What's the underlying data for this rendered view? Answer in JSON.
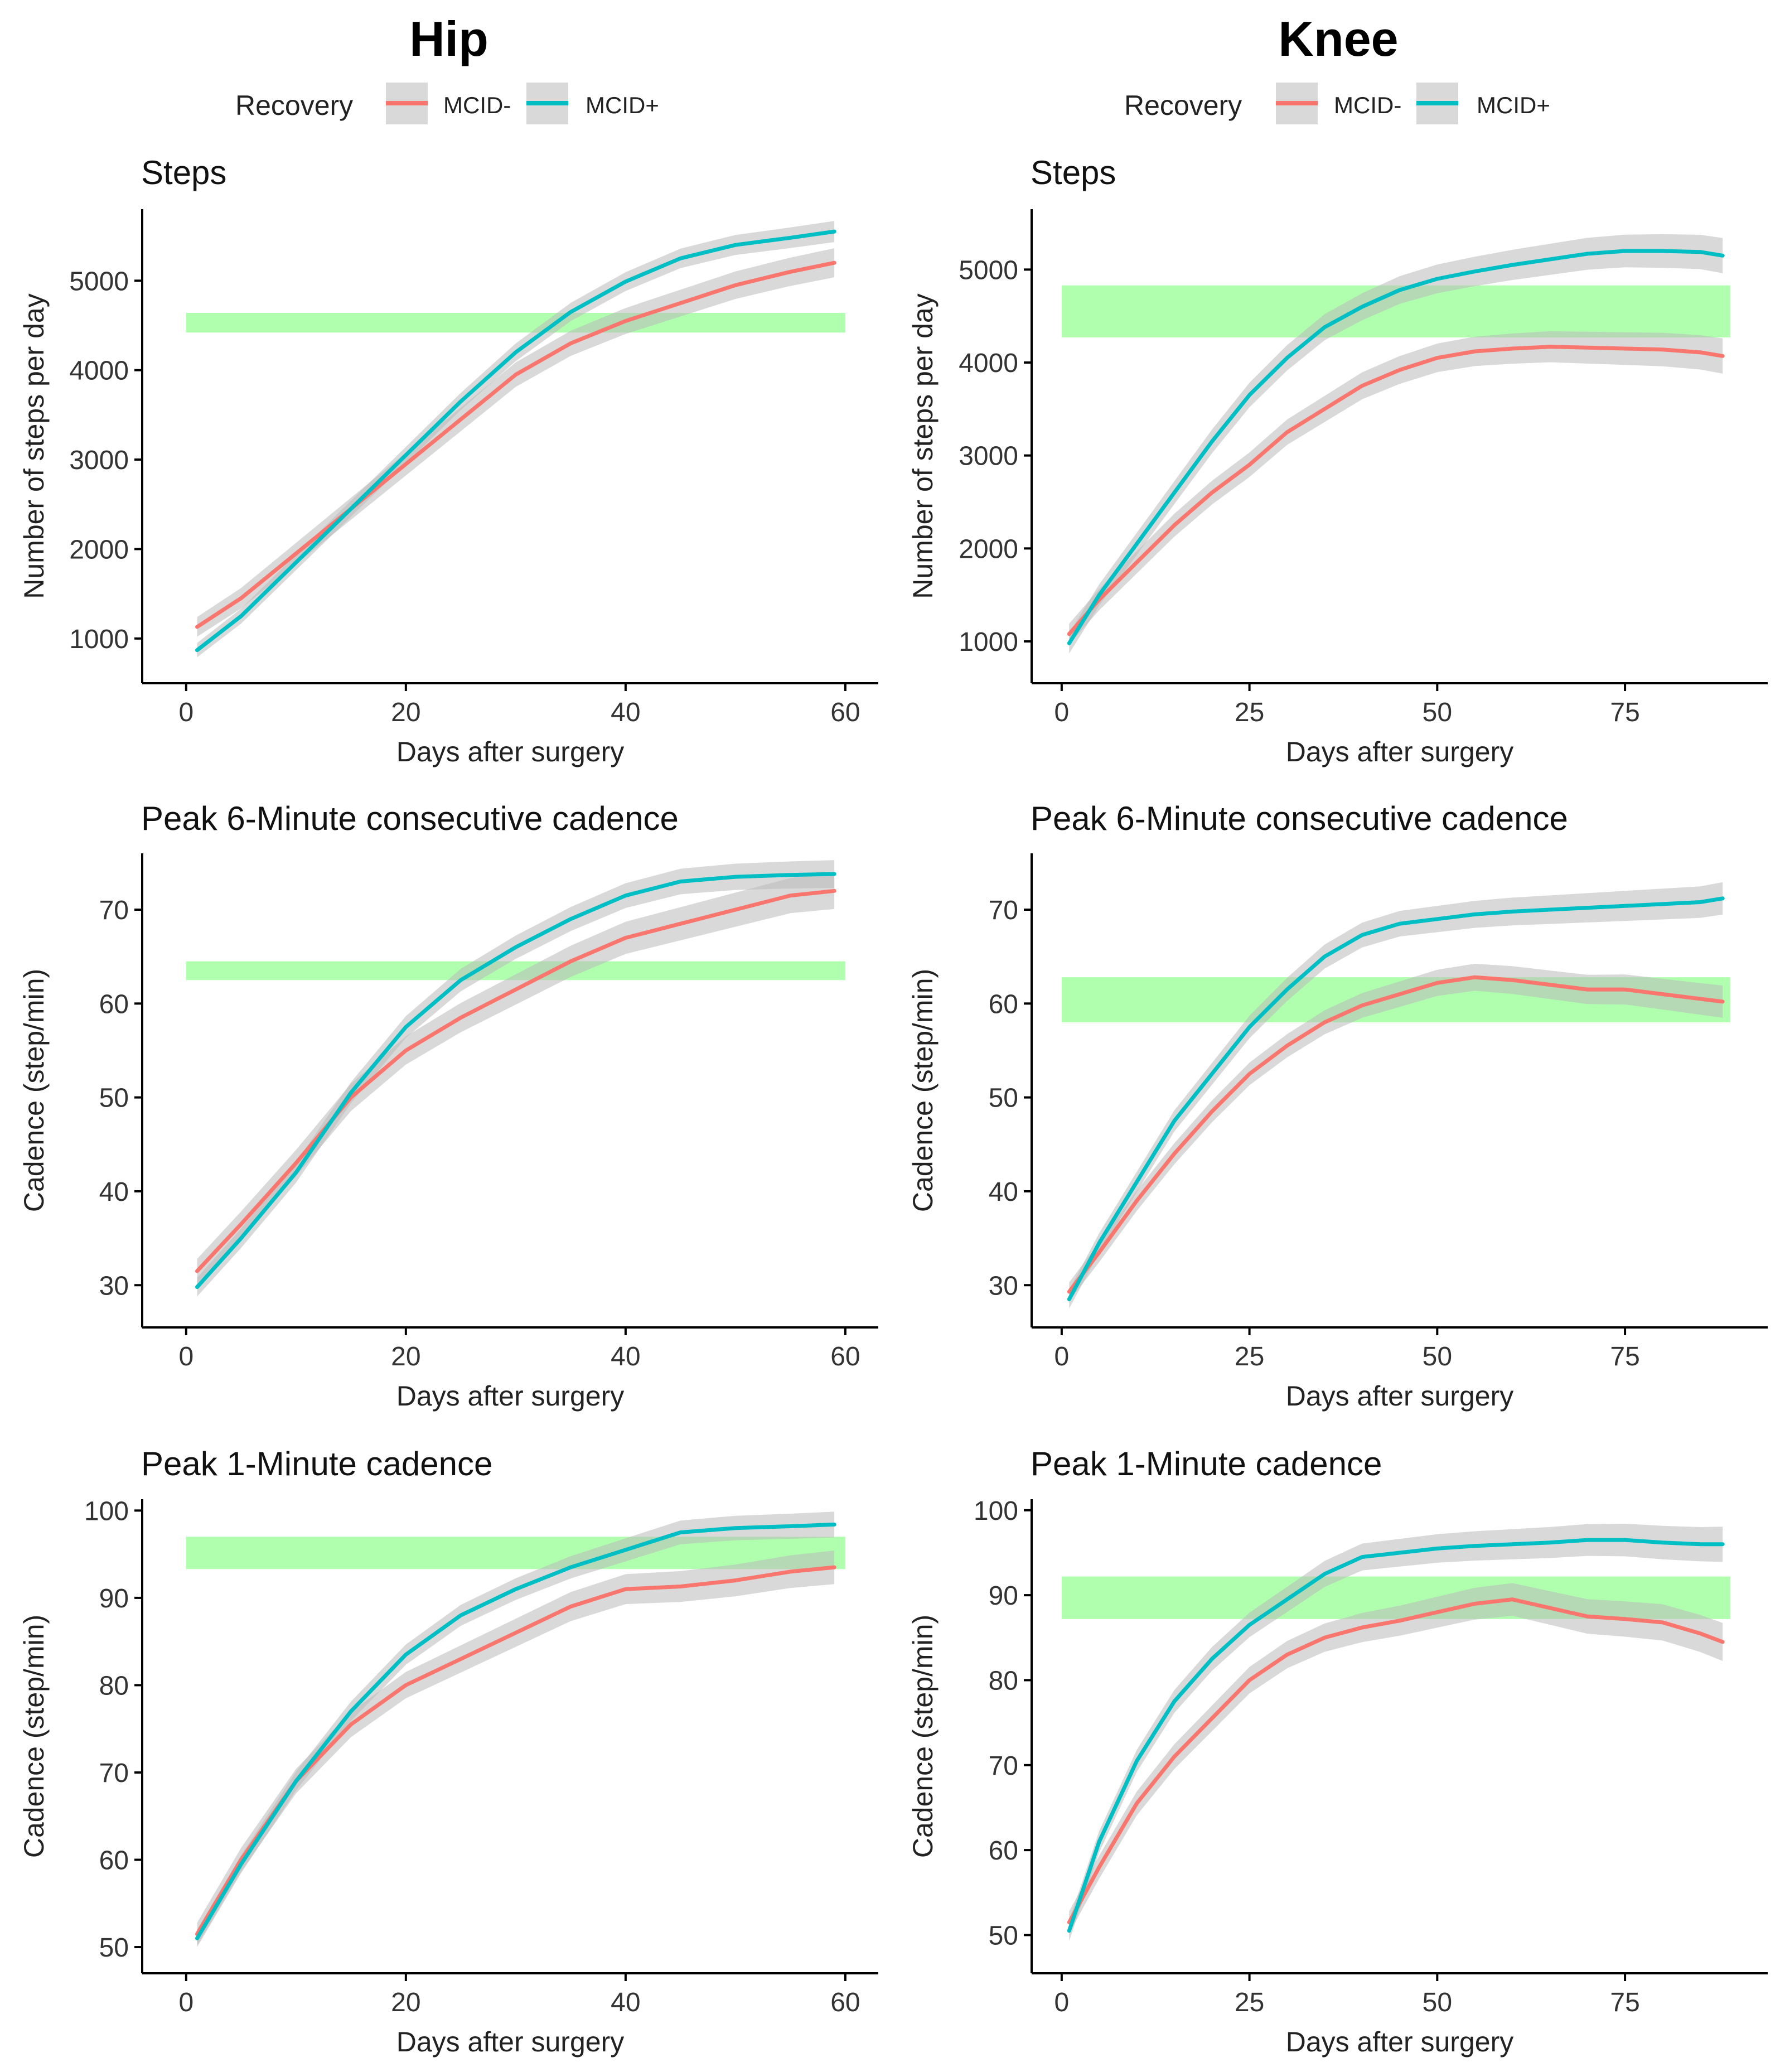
{
  "colors": {
    "mcid_minus": "#F8766D",
    "mcid_plus": "#00BFC4",
    "ribbon": "#b9b9b9",
    "mcid_band": "#90ff90",
    "legend_key_bg": "#d9d9d9"
  },
  "columns": [
    {
      "title": "Hip",
      "legend": {
        "title": "Recovery",
        "items": [
          {
            "label": "MCID-",
            "series": "mcid_minus"
          },
          {
            "label": "MCID+",
            "series": "mcid_plus"
          }
        ]
      }
    },
    {
      "title": "Knee",
      "legend": {
        "title": "Recovery",
        "items": [
          {
            "label": "MCID-",
            "series": "mcid_minus"
          },
          {
            "label": "MCID+",
            "series": "mcid_plus"
          }
        ]
      }
    }
  ],
  "chart_data": [
    {
      "type": "line",
      "column": 0,
      "row": 0,
      "title": "Steps",
      "xlabel": "Days after surgery",
      "ylabel": "Number of steps per day",
      "xlim": [
        -4,
        63
      ],
      "ylim": [
        500,
        5800
      ],
      "xticks": [
        0,
        20,
        40,
        60
      ],
      "yticks": [
        1000,
        2000,
        3000,
        4000,
        5000
      ],
      "band": [
        4420,
        4640
      ],
      "x": [
        1,
        5,
        10,
        15,
        20,
        25,
        30,
        35,
        40,
        45,
        50,
        55,
        59
      ],
      "series": [
        {
          "name": "MCID-",
          "key": "mcid_minus",
          "ribbon": 110,
          "values": [
            1130,
            1450,
            1950,
            2450,
            2950,
            3450,
            3950,
            4300,
            4550,
            4750,
            4950,
            5100,
            5200
          ]
        },
        {
          "name": "MCID+",
          "key": "mcid_plus",
          "ribbon": 80,
          "values": [
            870,
            1250,
            1850,
            2450,
            3050,
            3650,
            4200,
            4650,
            4990,
            5250,
            5400,
            5480,
            5550
          ]
        }
      ]
    },
    {
      "type": "line",
      "column": 1,
      "row": 0,
      "title": "Steps",
      "xlabel": "Days after surgery",
      "ylabel": "Number of steps per day",
      "xlim": [
        -4,
        94
      ],
      "ylim": [
        550,
        5650
      ],
      "xticks": [
        0,
        25,
        50,
        75
      ],
      "yticks": [
        1000,
        2000,
        3000,
        4000,
        5000
      ],
      "band": [
        4270,
        4830
      ],
      "x": [
        1,
        5,
        10,
        15,
        20,
        25,
        30,
        35,
        40,
        45,
        50,
        55,
        60,
        65,
        70,
        75,
        80,
        85,
        88
      ],
      "series": [
        {
          "name": "MCID-",
          "key": "mcid_minus",
          "ribbon": 110,
          "values": [
            1080,
            1450,
            1850,
            2250,
            2600,
            2900,
            3250,
            3500,
            3750,
            3920,
            4050,
            4120,
            4150,
            4170,
            4160,
            4150,
            4140,
            4110,
            4070
          ]
        },
        {
          "name": "MCID+",
          "key": "mcid_plus",
          "ribbon": 110,
          "values": [
            980,
            1500,
            2050,
            2600,
            3150,
            3650,
            4050,
            4380,
            4600,
            4780,
            4900,
            4980,
            5050,
            5110,
            5170,
            5200,
            5200,
            5190,
            5150
          ]
        }
      ]
    },
    {
      "type": "line",
      "column": 0,
      "row": 1,
      "title": "Peak 6-Minute consecutive cadence",
      "xlabel": "Days after surgery",
      "ylabel": "Cadence (step/min)",
      "xlim": [
        -4,
        63
      ],
      "ylim": [
        25.5,
        76
      ],
      "xticks": [
        0,
        20,
        40,
        60
      ],
      "yticks": [
        30,
        40,
        50,
        60,
        70
      ],
      "band": [
        62.5,
        64.5
      ],
      "x": [
        1,
        5,
        10,
        15,
        20,
        25,
        30,
        35,
        40,
        45,
        50,
        55,
        59
      ],
      "series": [
        {
          "name": "MCID-",
          "key": "mcid_minus",
          "ribbon": 1.3,
          "values": [
            31.5,
            36.5,
            43,
            50,
            55,
            58.5,
            61.5,
            64.5,
            67,
            68.5,
            70,
            71.5,
            72
          ]
        },
        {
          "name": "MCID+",
          "key": "mcid_plus",
          "ribbon": 1.0,
          "values": [
            29.8,
            35,
            42,
            50.5,
            57.5,
            62.5,
            66,
            69,
            71.5,
            73,
            73.5,
            73.7,
            73.8
          ]
        }
      ]
    },
    {
      "type": "line",
      "column": 1,
      "row": 1,
      "title": "Peak 6-Minute consecutive cadence",
      "xlabel": "Days after surgery",
      "ylabel": "Cadence (step/min)",
      "xlim": [
        -4,
        94
      ],
      "ylim": [
        25.5,
        76
      ],
      "xticks": [
        0,
        25,
        50,
        75
      ],
      "yticks": [
        30,
        40,
        50,
        60,
        70
      ],
      "band": [
        58,
        62.8
      ],
      "x": [
        1,
        5,
        10,
        15,
        20,
        25,
        30,
        35,
        40,
        45,
        50,
        55,
        60,
        65,
        70,
        75,
        80,
        85,
        88
      ],
      "series": [
        {
          "name": "MCID-",
          "key": "mcid_minus",
          "ribbon": 1.0,
          "values": [
            29.3,
            33.5,
            39,
            44,
            48.5,
            52.5,
            55.5,
            58,
            59.8,
            61,
            62.2,
            62.8,
            62.5,
            62,
            61.5,
            61.5,
            61,
            60.5,
            60.2
          ]
        },
        {
          "name": "MCID+",
          "key": "mcid_plus",
          "ribbon": 1.0,
          "values": [
            28.5,
            34.5,
            41,
            47.5,
            52.5,
            57.5,
            61.5,
            65,
            67.3,
            68.5,
            69,
            69.5,
            69.8,
            70,
            70.2,
            70.4,
            70.6,
            70.8,
            71.2
          ]
        }
      ]
    },
    {
      "type": "line",
      "column": 0,
      "row": 2,
      "title": "Peak 1-Minute cadence",
      "xlabel": "Days after surgery",
      "ylabel": "Cadence (step/min)",
      "xlim": [
        -4,
        63
      ],
      "ylim": [
        47,
        101.3
      ],
      "xticks": [
        0,
        20,
        40,
        60
      ],
      "yticks": [
        50,
        60,
        70,
        80,
        90,
        100
      ],
      "band": [
        93.3,
        97
      ],
      "x": [
        1,
        5,
        10,
        15,
        20,
        25,
        30,
        35,
        40,
        45,
        50,
        55,
        59
      ],
      "series": [
        {
          "name": "MCID-",
          "key": "mcid_minus",
          "ribbon": 1.3,
          "values": [
            51.5,
            60,
            69,
            75.5,
            80,
            83,
            86,
            89,
            91,
            91.3,
            92,
            93,
            93.5
          ]
        },
        {
          "name": "MCID+",
          "key": "mcid_plus",
          "ribbon": 1.0,
          "values": [
            51,
            59.5,
            69,
            77,
            83.5,
            88,
            91,
            93.5,
            95.5,
            97.5,
            98,
            98.2,
            98.4
          ]
        }
      ]
    },
    {
      "type": "line",
      "column": 1,
      "row": 2,
      "title": "Peak 1-Minute cadence",
      "xlabel": "Days after surgery",
      "ylabel": "Cadence (step/min)",
      "xlim": [
        -4,
        94
      ],
      "ylim": [
        45.5,
        101.3
      ],
      "xticks": [
        0,
        25,
        50,
        75
      ],
      "yticks": [
        50,
        60,
        70,
        80,
        90,
        100
      ],
      "band": [
        87.2,
        92.2
      ],
      "x": [
        1,
        5,
        10,
        15,
        20,
        25,
        30,
        35,
        40,
        45,
        50,
        55,
        60,
        65,
        70,
        75,
        80,
        85,
        88
      ],
      "series": [
        {
          "name": "MCID-",
          "key": "mcid_minus",
          "ribbon": 1.3,
          "values": [
            51.5,
            58,
            65.5,
            71,
            75.5,
            80,
            83,
            85,
            86.2,
            87,
            88,
            89,
            89.5,
            88.5,
            87.5,
            87.2,
            86.8,
            85.5,
            84.5
          ]
        },
        {
          "name": "MCID+",
          "key": "mcid_plus",
          "ribbon": 1.2,
          "values": [
            50.5,
            61,
            70.5,
            77.5,
            82.5,
            86.5,
            89.5,
            92.5,
            94.5,
            95,
            95.5,
            95.8,
            96,
            96.2,
            96.5,
            96.5,
            96.2,
            96,
            96
          ]
        }
      ]
    }
  ]
}
